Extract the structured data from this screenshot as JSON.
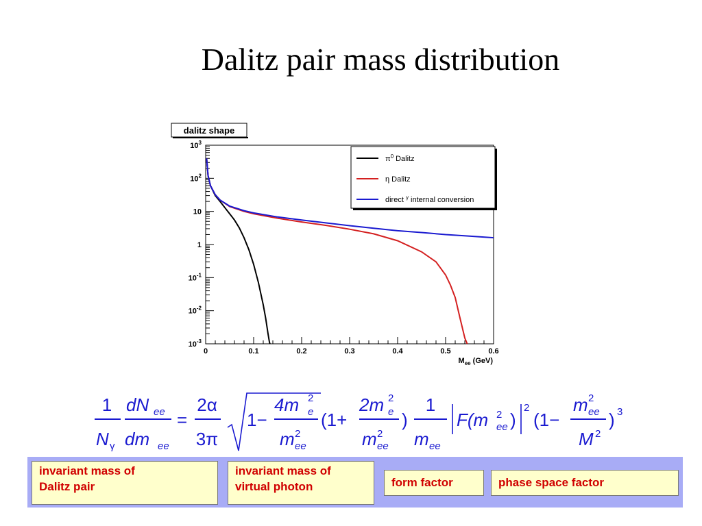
{
  "slide": {
    "title": "Dalitz pair mass distribution"
  },
  "chart_data": {
    "type": "line",
    "title": "dalitz shape",
    "xlabel": "M",
    "xlabel_sub": "ee",
    "xlabel_unit": "(GeV)",
    "xlim": [
      0,
      0.6
    ],
    "ylim": [
      0.001,
      1000
    ],
    "y_scale": "log",
    "x_ticks": [
      "0",
      "0.1",
      "0.2",
      "0.3",
      "0.4",
      "0.5",
      "0.6"
    ],
    "y_ticks": [
      {
        "base": "10",
        "exp": "3"
      },
      {
        "base": "10",
        "exp": "2"
      },
      {
        "base": "10",
        "exp": ""
      },
      {
        "base": "1",
        "exp": ""
      },
      {
        "base": "10",
        "exp": "-1"
      },
      {
        "base": "10",
        "exp": "-2"
      },
      {
        "base": "10",
        "exp": "-3"
      }
    ],
    "legend_position": "top-right",
    "series": [
      {
        "name": "π⁰ Dalitz",
        "legend_parts": [
          "π",
          "0",
          " Dalitz"
        ],
        "color": "#000000",
        "x": [
          0.002,
          0.005,
          0.01,
          0.02,
          0.03,
          0.04,
          0.05,
          0.06,
          0.07,
          0.08,
          0.09,
          0.1,
          0.11,
          0.12,
          0.125,
          0.13,
          0.133,
          0.134
        ],
        "y": [
          400,
          120,
          60,
          30,
          20,
          13,
          8.5,
          5.5,
          3.2,
          1.6,
          0.7,
          0.25,
          0.07,
          0.015,
          0.006,
          0.002,
          0.0011,
          0.001
        ]
      },
      {
        "name": "η Dalitz",
        "legend_parts": [
          "η",
          "",
          " Dalitz"
        ],
        "color": "#d42020",
        "x": [
          0.002,
          0.005,
          0.01,
          0.02,
          0.03,
          0.05,
          0.08,
          0.1,
          0.15,
          0.2,
          0.25,
          0.3,
          0.35,
          0.4,
          0.45,
          0.48,
          0.5,
          0.51,
          0.52,
          0.53,
          0.54,
          0.545
        ],
        "y": [
          400,
          120,
          60,
          32,
          22,
          14,
          10,
          8.5,
          6.2,
          4.8,
          3.8,
          2.9,
          2.1,
          1.3,
          0.6,
          0.3,
          0.12,
          0.06,
          0.025,
          0.006,
          0.0015,
          0.001
        ]
      },
      {
        "name": "direct γ internal conversion",
        "legend_parts": [
          "direct ",
          "γ",
          " internal conversion"
        ],
        "color": "#1a1ad0",
        "x": [
          0.002,
          0.005,
          0.01,
          0.02,
          0.03,
          0.05,
          0.08,
          0.1,
          0.15,
          0.2,
          0.25,
          0.3,
          0.35,
          0.4,
          0.45,
          0.5,
          0.55,
          0.6
        ],
        "y": [
          400,
          120,
          60,
          32,
          22,
          14.5,
          10.5,
          9,
          6.8,
          5.5,
          4.5,
          3.7,
          3.1,
          2.6,
          2.3,
          2.0,
          1.8,
          1.6
        ]
      }
    ]
  },
  "formula": {
    "one": "1",
    "N": "N",
    "gamma": "γ",
    "dN": "dN",
    "ee": "ee",
    "dm": "dm",
    "eq": "=",
    "two_alpha": "2α",
    "three_pi": "3π",
    "one_minus": "1−",
    "four_m": "4m",
    "two_m": "2m",
    "sq": "2",
    "e": "e",
    "m": "m",
    "open_plus": "(1+",
    "close": ")",
    "F_open": "F(m",
    "F_close": ")",
    "open_one_minus": "(1−",
    "M": "M",
    "cube": "3"
  },
  "labels": [
    {
      "line1": "invariant mass of",
      "line2": "Dalitz pair"
    },
    {
      "line1": "invariant mass of",
      "line2": "virtual photon"
    },
    {
      "line1": "form factor",
      "line2": ""
    },
    {
      "line1": "phase space factor",
      "line2": ""
    }
  ]
}
